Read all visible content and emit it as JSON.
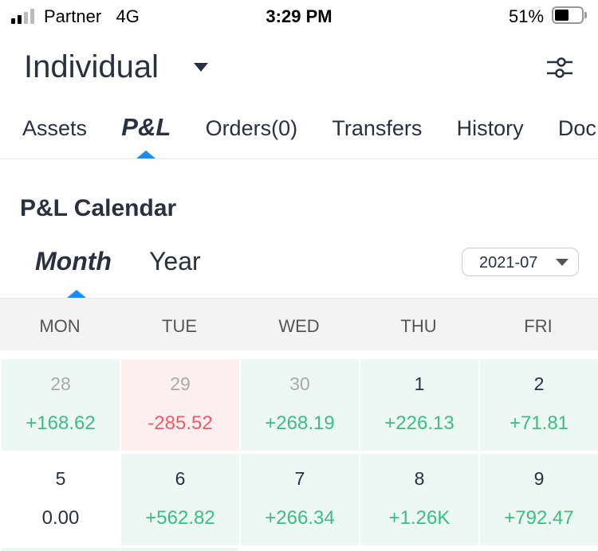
{
  "status": {
    "carrier": "Partner",
    "network": "4G",
    "time": "3:29 PM",
    "battery": "51%"
  },
  "header": {
    "account": "Individual"
  },
  "tabs": [
    "Assets",
    "P&L",
    "Orders(0)",
    "Transfers",
    "History",
    "Doc"
  ],
  "active_tab": "P&L",
  "section_title": "P&L Calendar",
  "period_tabs": [
    "Month",
    "Year"
  ],
  "month_select": "2021-07",
  "weekdays": [
    "MON",
    "TUE",
    "WED",
    "THU",
    "FRI"
  ],
  "rows": [
    [
      {
        "day": "28",
        "value": "+168.62",
        "type": "pos",
        "dim": true
      },
      {
        "day": "29",
        "value": "-285.52",
        "type": "neg",
        "dim": true
      },
      {
        "day": "30",
        "value": "+268.19",
        "type": "pos",
        "dim": true
      },
      {
        "day": "1",
        "value": "+226.13",
        "type": "pos"
      },
      {
        "day": "2",
        "value": "+71.81",
        "type": "pos"
      }
    ],
    [
      {
        "day": "5",
        "value": "0.00",
        "type": "zero"
      },
      {
        "day": "6",
        "value": "+562.82",
        "type": "pos"
      },
      {
        "day": "7",
        "value": "+266.34",
        "type": "pos"
      },
      {
        "day": "8",
        "value": "+1.26K",
        "type": "pos"
      },
      {
        "day": "9",
        "value": "+792.47",
        "type": "pos"
      }
    ]
  ],
  "colors": {
    "accent": "#1a8cff",
    "positive": "#3dbc86",
    "negative": "#ef5a6a"
  }
}
